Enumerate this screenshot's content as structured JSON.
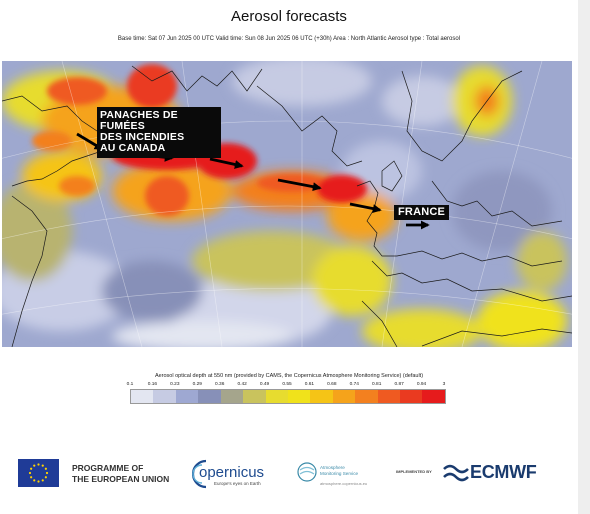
{
  "title": "Aerosol forecasts",
  "subtitle": "Base time: Sat 07 Jun 2025 00 UTC Valid time: Sun 08 Jun 2025 06 UTC (+30h) Area : North Atlantic Aerosol type : Total aerosol",
  "map": {
    "annotations": {
      "canada_lines": [
        "PANACHES DE FUMÉES",
        "DES INCENDIES",
        "AU CANADA"
      ],
      "france": "FRANCE"
    },
    "arrow_icon": "arrow-right-icon"
  },
  "legend": {
    "title": "Aerosol optical depth at 550 nm (provided by CAMS, the Copernicus Atmosphere Monitoring Service) (default)",
    "ticks": [
      "0.1",
      "0.16",
      "0.23",
      "0.29",
      "0.36",
      "0.42",
      "0.49",
      "0.55",
      "0.61",
      "0.68",
      "0.74",
      "0.81",
      "0.87",
      "0.94",
      "3"
    ],
    "colors": [
      "#e3e6f1",
      "#c6cbe3",
      "#9ea8d2",
      "#8790b8",
      "#a5a58c",
      "#c9c35d",
      "#e7dc2f",
      "#f0e21b",
      "#f5c416",
      "#f5a31b",
      "#f3801f",
      "#ef5a21",
      "#ea3a20",
      "#e61b1c"
    ]
  },
  "footer": {
    "eu_lines": [
      "PROGRAMME OF",
      "THE EUROPEAN UNION"
    ],
    "copernicus_word": "opernicus",
    "copernicus_tagline": "Europe's eyes on Earth",
    "cams_lines": [
      "Atmosphere",
      "Monitoring Service"
    ],
    "cams_url": "atmosphere.copernicus.eu",
    "implemented_by": "IMPLEMENTED BY",
    "ecmwf": "ECMWF"
  }
}
